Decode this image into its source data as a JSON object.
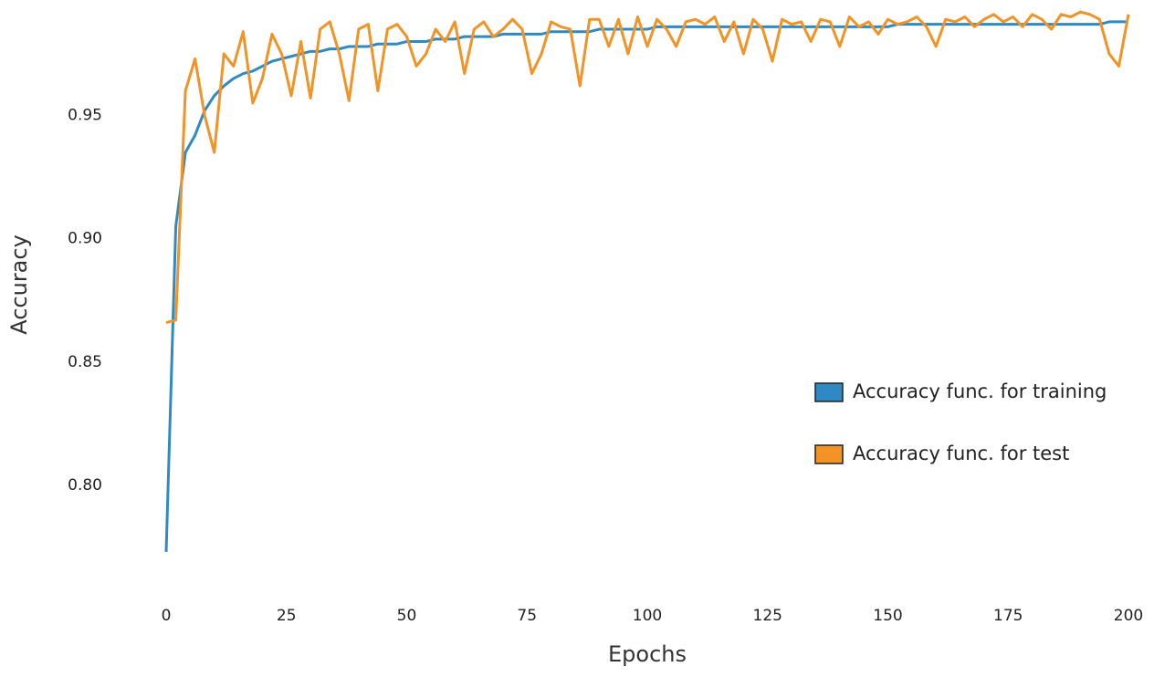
{
  "chart_data": {
    "type": "line",
    "x_label": "Epochs",
    "y_label": "Accuracy",
    "x": [
      0,
      2,
      4,
      6,
      8,
      10,
      12,
      14,
      16,
      18,
      20,
      22,
      24,
      26,
      28,
      30,
      32,
      34,
      36,
      38,
      40,
      42,
      44,
      46,
      48,
      50,
      52,
      54,
      56,
      58,
      60,
      62,
      64,
      66,
      68,
      70,
      72,
      74,
      76,
      78,
      80,
      82,
      84,
      86,
      88,
      90,
      92,
      94,
      96,
      98,
      100,
      102,
      104,
      106,
      108,
      110,
      112,
      114,
      116,
      118,
      120,
      122,
      124,
      126,
      128,
      130,
      132,
      134,
      136,
      138,
      140,
      142,
      144,
      146,
      148,
      150,
      152,
      154,
      156,
      158,
      160,
      162,
      164,
      166,
      168,
      170,
      172,
      174,
      176,
      178,
      180,
      182,
      184,
      186,
      188,
      190,
      192,
      194,
      196,
      198,
      200
    ],
    "series": [
      {
        "name": "Accuracy func. for training",
        "color": "#2f8ac4",
        "values": [
          0.773,
          0.905,
          0.935,
          0.942,
          0.952,
          0.958,
          0.962,
          0.965,
          0.967,
          0.968,
          0.97,
          0.972,
          0.973,
          0.974,
          0.975,
          0.976,
          0.976,
          0.977,
          0.977,
          0.978,
          0.978,
          0.978,
          0.979,
          0.979,
          0.979,
          0.98,
          0.98,
          0.98,
          0.981,
          0.981,
          0.981,
          0.982,
          0.982,
          0.982,
          0.982,
          0.983,
          0.983,
          0.983,
          0.983,
          0.983,
          0.984,
          0.984,
          0.984,
          0.984,
          0.984,
          0.985,
          0.985,
          0.985,
          0.985,
          0.985,
          0.985,
          0.986,
          0.986,
          0.986,
          0.986,
          0.986,
          0.986,
          0.986,
          0.986,
          0.986,
          0.986,
          0.986,
          0.986,
          0.986,
          0.986,
          0.986,
          0.986,
          0.986,
          0.986,
          0.986,
          0.986,
          0.986,
          0.986,
          0.986,
          0.986,
          0.986,
          0.987,
          0.987,
          0.987,
          0.987,
          0.987,
          0.987,
          0.987,
          0.987,
          0.987,
          0.987,
          0.987,
          0.987,
          0.987,
          0.987,
          0.987,
          0.987,
          0.987,
          0.987,
          0.987,
          0.987,
          0.987,
          0.987,
          0.988,
          0.988,
          0.988
        ]
      },
      {
        "name": "Accuracy func. for test",
        "color": "#f39325",
        "values": [
          0.866,
          0.867,
          0.96,
          0.973,
          0.95,
          0.935,
          0.975,
          0.97,
          0.984,
          0.955,
          0.965,
          0.983,
          0.975,
          0.958,
          0.98,
          0.957,
          0.985,
          0.988,
          0.975,
          0.956,
          0.985,
          0.987,
          0.96,
          0.985,
          0.987,
          0.982,
          0.97,
          0.975,
          0.985,
          0.98,
          0.988,
          0.967,
          0.985,
          0.988,
          0.982,
          0.985,
          0.989,
          0.985,
          0.967,
          0.975,
          0.988,
          0.986,
          0.985,
          0.962,
          0.989,
          0.989,
          0.978,
          0.989,
          0.975,
          0.99,
          0.978,
          0.989,
          0.985,
          0.978,
          0.988,
          0.989,
          0.987,
          0.99,
          0.98,
          0.988,
          0.975,
          0.989,
          0.985,
          0.972,
          0.989,
          0.987,
          0.988,
          0.98,
          0.989,
          0.988,
          0.978,
          0.99,
          0.986,
          0.988,
          0.983,
          0.989,
          0.987,
          0.988,
          0.99,
          0.986,
          0.978,
          0.989,
          0.988,
          0.99,
          0.986,
          0.989,
          0.991,
          0.988,
          0.99,
          0.986,
          0.991,
          0.989,
          0.985,
          0.991,
          0.99,
          0.992,
          0.991,
          0.989,
          0.975,
          0.97,
          0.991
        ]
      }
    ],
    "xlim": [
      0,
      200
    ],
    "xticks": [
      0,
      25,
      50,
      75,
      100,
      125,
      150,
      175,
      200
    ],
    "ylim": [
      0.76,
      0.995
    ],
    "yticks": [
      {
        "value": 0.8,
        "label": "0.80"
      },
      0.85,
      {
        "value": 0.9,
        "label": "0.90"
      },
      0.95
    ],
    "grid": false,
    "legend": "right"
  }
}
